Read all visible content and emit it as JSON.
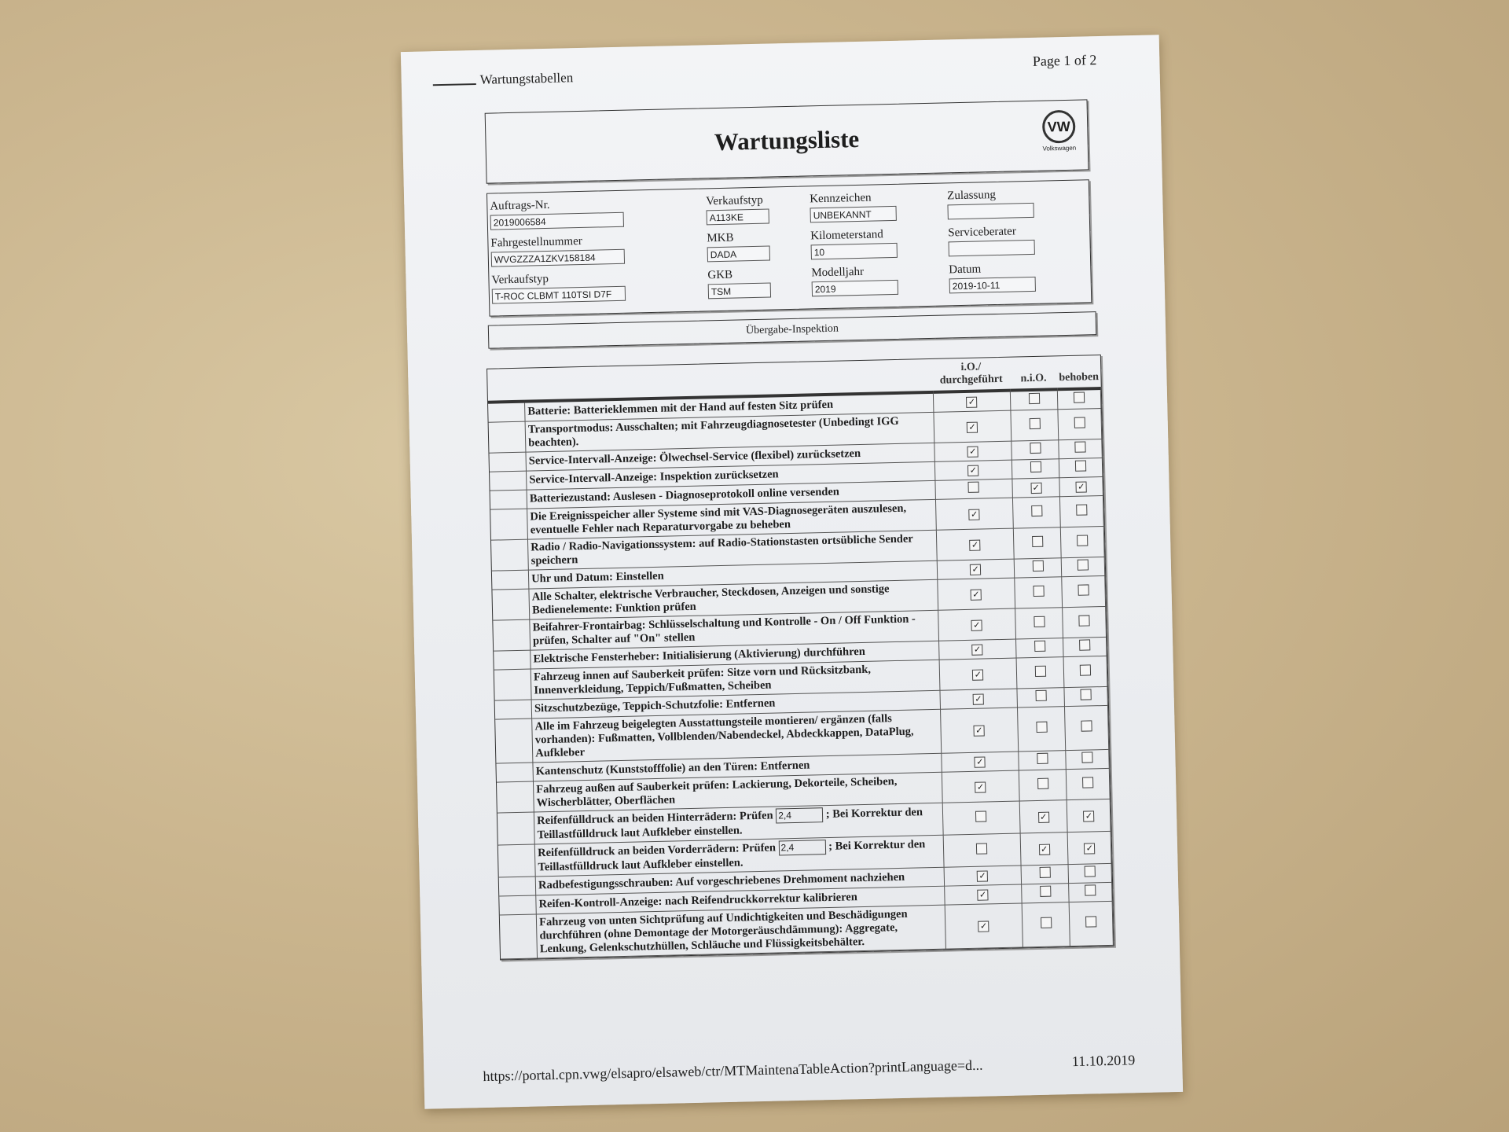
{
  "header": {
    "section": "Wartungstabellen",
    "page": "Page 1 of 2"
  },
  "title": "Wartungsliste",
  "brand": {
    "logo_text": "VW",
    "name": "Volkswagen"
  },
  "fields": [
    {
      "label": "Auftrags-Nr.",
      "value": "2019006584"
    },
    {
      "label": "Verkaufstyp",
      "value": "A113KE"
    },
    {
      "label": "Kennzeichen",
      "value": "UNBEKANNT"
    },
    {
      "label": "Zulassung",
      "value": ""
    },
    {
      "label": "Fahrgestellnummer",
      "value": "WVGZZZA1ZKV158184"
    },
    {
      "label": "MKB",
      "value": "DADA"
    },
    {
      "label": "Kilometerstand",
      "value": "10"
    },
    {
      "label": "Serviceberater",
      "value": ""
    },
    {
      "label": "Verkaufstyp",
      "value": "T-ROC CLBMT 110TSI D7F"
    },
    {
      "label": "GKB",
      "value": "TSM"
    },
    {
      "label": "Modelljahr",
      "value": "2019"
    },
    {
      "label": "Datum",
      "value": "2019-10-11"
    }
  ],
  "section_title": "Übergabe-Inspektion",
  "columns": {
    "io": "i.O./ durchgeführt",
    "nio": "n.i.O.",
    "behoben": "behoben"
  },
  "check_mark": "✓",
  "rows": [
    {
      "text": "Batterie: Batterieklemmen mit der Hand auf festen Sitz prüfen",
      "io": true,
      "nio": false,
      "behoben": false
    },
    {
      "text": "Transportmodus: Ausschalten; mit Fahrzeugdiagnosetester (Unbedingt IGG beachten).",
      "io": true,
      "nio": false,
      "behoben": false
    },
    {
      "text": "Service-Intervall-Anzeige: Ölwechsel-Service (flexibel) zurücksetzen",
      "io": true,
      "nio": false,
      "behoben": false
    },
    {
      "text": "Service-Intervall-Anzeige: Inspektion zurücksetzen",
      "io": true,
      "nio": false,
      "behoben": false
    },
    {
      "text": "Batteriezustand: Auslesen - Diagnoseprotokoll online versenden",
      "io": false,
      "nio": true,
      "behoben": true
    },
    {
      "text": "Die Ereignisspeicher aller Systeme sind mit VAS-Diagnosegeräten auszulesen, eventuelle Fehler nach Reparaturvorgabe zu beheben",
      "io": true,
      "nio": false,
      "behoben": false
    },
    {
      "text": "Radio / Radio-Navigationssystem: auf Radio-Stationstasten ortsübliche Sender speichern",
      "io": true,
      "nio": false,
      "behoben": false
    },
    {
      "text": "Uhr und Datum: Einstellen",
      "io": true,
      "nio": false,
      "behoben": false
    },
    {
      "text": "Alle Schalter, elektrische Verbraucher, Steckdosen, Anzeigen und sonstige Bedienelemente: Funktion prüfen",
      "io": true,
      "nio": false,
      "behoben": false
    },
    {
      "text": "Beifahrer-Frontairbag: Schlüsselschaltung und Kontrolle - On / Off Funktion - prüfen, Schalter auf \"On\" stellen",
      "io": true,
      "nio": false,
      "behoben": false
    },
    {
      "text": "Elektrische Fensterheber: Initialisierung (Aktivierung) durchführen",
      "io": true,
      "nio": false,
      "behoben": false
    },
    {
      "text": "Fahrzeug innen auf Sauberkeit prüfen: Sitze vorn und Rücksitzbank, Innenverkleidung, Teppich/Fußmatten, Scheiben",
      "io": true,
      "nio": false,
      "behoben": false
    },
    {
      "text": "Sitzschutzbezüge, Teppich-Schutzfolie: Entfernen",
      "io": true,
      "nio": false,
      "behoben": false
    },
    {
      "text": "Alle im Fahrzeug beigelegten Ausstattungsteile montieren/ ergänzen (falls vorhanden): Fußmatten, Vollblenden/Nabendeckel, Abdeckkappen, DataPlug, Aufkleber",
      "io": true,
      "nio": false,
      "behoben": false
    },
    {
      "text": "Kantenschutz (Kunststofffolie) an den Türen: Entfernen",
      "io": true,
      "nio": false,
      "behoben": false
    },
    {
      "text": "Fahrzeug außen auf Sauberkeit prüfen: Lackierung, Dekorteile, Scheiben, Wischerblätter, Oberflächen",
      "io": true,
      "nio": false,
      "behoben": false
    },
    {
      "text": "Reifenfülldruck an beiden Hinterrädern: Prüfen",
      "input": "2,4",
      "text_after": "; Bei Korrektur den Teillastfülldruck laut Aufkleber einstellen.",
      "io": false,
      "nio": true,
      "behoben": true
    },
    {
      "text": "Reifenfülldruck an beiden Vorderrädern: Prüfen",
      "input": "2,4",
      "text_after": "; Bei Korrektur den Teillastfülldruck laut Aufkleber einstellen.",
      "io": false,
      "nio": true,
      "behoben": true
    },
    {
      "text": "Radbefestigungsschrauben: Auf vorgeschriebenes Drehmoment nachziehen",
      "io": true,
      "nio": false,
      "behoben": false
    },
    {
      "text": "Reifen-Kontroll-Anzeige: nach Reifendruckkorrektur kalibrieren",
      "io": true,
      "nio": false,
      "behoben": false
    },
    {
      "text": "Fahrzeug von unten Sichtprüfung auf Undichtigkeiten und Beschädigungen durchführen (ohne Demontage der Motorgeräuschdämmung): Aggregate, Lenkung, Gelenkschutzhüllen, Schläuche und Flüssigkeitsbehälter.",
      "io": true,
      "nio": false,
      "behoben": false
    }
  ],
  "footer": {
    "url": "https://portal.cpn.vwg/elsapro/elsaweb/ctr/MTMaintenaTableAction?printLanguage=d...",
    "date": "11.10.2019"
  }
}
